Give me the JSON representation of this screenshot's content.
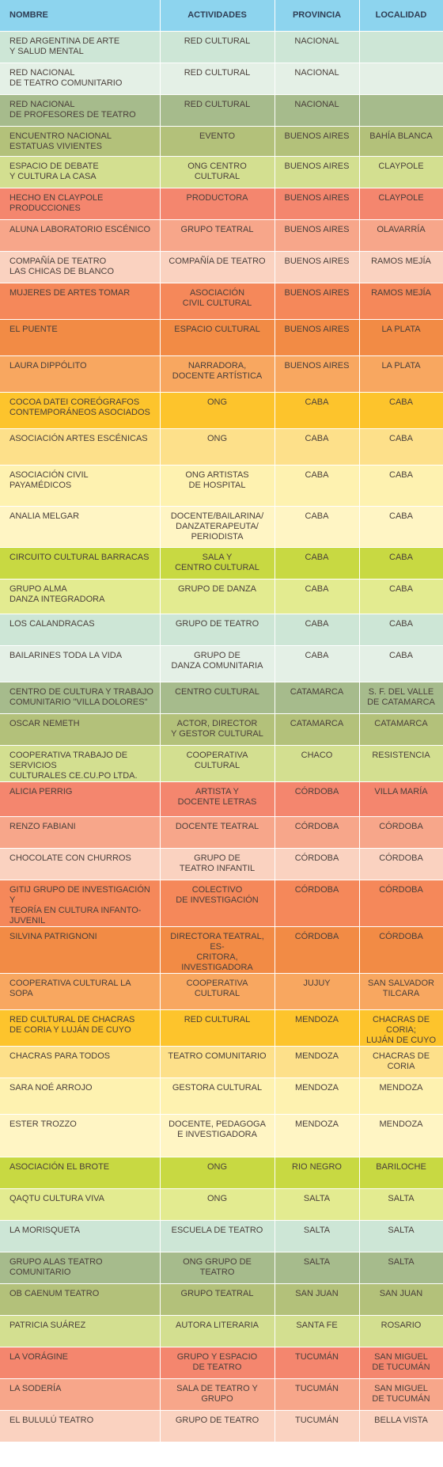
{
  "table": {
    "header_color": "#8dd4ee",
    "columns": [
      "NOMBRE",
      "ACTIVIDADES",
      "PROVINCIA",
      "LOCALIDAD"
    ],
    "rows": [
      {
        "nombre": "RED ARGENTINA DE ARTE\nY SALUD MENTAL",
        "actividades": "RED CULTURAL",
        "provincia": "NACIONAL",
        "localidad": "",
        "color": "#cde6d6"
      },
      {
        "nombre": "RED NACIONAL\nDE TEATRO COMUNITARIO",
        "actividades": "RED CULTURAL",
        "provincia": "NACIONAL",
        "localidad": "",
        "color": "#e4f0e6"
      },
      {
        "nombre": "RED NACIONAL\nDE PROFESORES DE TEATRO",
        "actividades": "RED CULTURAL",
        "provincia": "NACIONAL",
        "localidad": "",
        "color": "#a6bb8c"
      },
      {
        "nombre": "ENCUENTRO NACIONAL\nESTATUAS VIVIENTES",
        "actividades": "EVENTO",
        "provincia": "BUENOS AIRES",
        "localidad": "BAHÍA BLANCA",
        "color": "#b3c17a"
      },
      {
        "nombre": "ESPACIO DE DEBATE\nY CULTURA LA CASA",
        "actividades": "ONG CENTRO CULTURAL",
        "provincia": "BUENOS AIRES",
        "localidad": "CLAYPOLE",
        "color": "#d3df90"
      },
      {
        "nombre": "HECHO EN CLAYPOLE\nPRODUCCIONES",
        "actividades": "PRODUCTORA",
        "provincia": "BUENOS AIRES",
        "localidad": "CLAYPOLE",
        "color": "#f4866e"
      },
      {
        "nombre": "ALUNA LABORATORIO ESCÉNICO",
        "actividades": "GRUPO TEATRAL",
        "provincia": "BUENOS AIRES",
        "localidad": "OLAVARRÍA",
        "color": "#f7a68a"
      },
      {
        "nombre": "COMPAÑÍA DE TEATRO\nLAS CHICAS DE BLANCO",
        "actividades": "COMPAÑÍA DE TEATRO",
        "provincia": "BUENOS AIRES",
        "localidad": "RAMOS MEJÍA",
        "color": "#fad2c0"
      },
      {
        "nombre": "MUJERES DE ARTES TOMAR",
        "actividades": "ASOCIACIÓN\nCIVIL CULTURAL",
        "provincia": "BUENOS AIRES",
        "localidad": "RAMOS MEJÍA",
        "color": "#f5885a"
      },
      {
        "nombre": "EL PUENTE",
        "actividades": "ESPACIO CULTURAL",
        "provincia": "BUENOS AIRES",
        "localidad": "LA PLATA",
        "color": "#f28b45"
      },
      {
        "nombre": "LAURA DIPPÓLITO",
        "actividades": "NARRADORA,\nDOCENTE ARTÍSTICA",
        "provincia": "BUENOS AIRES",
        "localidad": "LA PLATA",
        "color": "#f8a760"
      },
      {
        "nombre": "COCOA DATEI COREÓGRAFOS\nCONTEMPORÁNEOS ASOCIADOS",
        "actividades": "ONG",
        "provincia": "CABA",
        "localidad": "CABA",
        "color": "#fdc42c"
      },
      {
        "nombre": "ASOCIACIÓN ARTES ESCÉNICAS",
        "actividades": "ONG",
        "provincia": "CABA",
        "localidad": "CABA",
        "color": "#fde08a"
      },
      {
        "nombre": "ASOCIACIÓN CIVIL\nPAYAMÉDICOS",
        "actividades": "ONG ARTISTAS\nDE HOSPITAL",
        "provincia": "CABA",
        "localidad": "CABA",
        "color": "#fef2b0"
      },
      {
        "nombre": "ANALIA MELGAR",
        "actividades": "DOCENTE/BAILARINA/\nDANZATERAPEUTA/\nPERIODISTA",
        "provincia": "CABA",
        "localidad": "CABA",
        "color": "#fff5c4"
      },
      {
        "nombre": "CIRCUITO CULTURAL BARRACAS",
        "actividades": "SALA Y\nCENTRO CULTURAL",
        "provincia": "CABA",
        "localidad": "CABA",
        "color": "#c8d942"
      },
      {
        "nombre": "GRUPO ALMA\nDANZA INTEGRADORA",
        "actividades": "GRUPO DE DANZA",
        "provincia": "CABA",
        "localidad": "CABA",
        "color": "#e3eb90"
      },
      {
        "nombre": "LOS CALANDRACAS",
        "actividades": "GRUPO DE TEATRO",
        "provincia": "CABA",
        "localidad": "CABA",
        "color": "#cde6d6"
      },
      {
        "nombre": "BAILARINES TODA LA VIDA",
        "actividades": "GRUPO DE\nDANZA COMUNITARIA",
        "provincia": "CABA",
        "localidad": "CABA",
        "color": "#e4f0e6"
      },
      {
        "nombre": "CENTRO DE CULTURA Y TRABAJO\nCOMUNITARIO \"VILLA DOLORES\"",
        "actividades": "CENTRO CULTURAL",
        "provincia": "CATAMARCA",
        "localidad": "S. F. DEL VALLE\nDE CATAMARCA",
        "color": "#a6bb8c"
      },
      {
        "nombre": "OSCAR NEMETH",
        "actividades": "ACTOR, DIRECTOR\nY GESTOR CULTURAL",
        "provincia": "CATAMARCA",
        "localidad": "CATAMARCA",
        "color": "#b3c17a"
      },
      {
        "nombre": "COOPERATIVA TRABAJO DE SERVICIOS\nCULTURALES CE.CU.PO LTDA.",
        "actividades": "COOPERATIVA\nCULTURAL",
        "provincia": "CHACO",
        "localidad": "RESISTENCIA",
        "color": "#d3df90"
      },
      {
        "nombre": "ALICIA PERRIG",
        "actividades": "ARTISTA Y\nDOCENTE LETRAS",
        "provincia": "CÓRDOBA",
        "localidad": "VILLA MARÍA",
        "color": "#f4866e"
      },
      {
        "nombre": "RENZO FABIANI",
        "actividades": "DOCENTE TEATRAL",
        "provincia": "CÓRDOBA",
        "localidad": "CÓRDOBA",
        "color": "#f7a68a"
      },
      {
        "nombre": "CHOCOLATE CON CHURROS",
        "actividades": "GRUPO DE\nTEATRO INFANTIL",
        "provincia": "CÓRDOBA",
        "localidad": "CÓRDOBA",
        "color": "#fad2c0"
      },
      {
        "nombre": "GITIJ GRUPO DE INVESTIGACIÓN Y\nTEORÍA EN CULTURA INFANTO-JUVENIL",
        "actividades": "COLECTIVO\nDE INVESTIGACIÓN",
        "provincia": "CÓRDOBA",
        "localidad": "CÓRDOBA",
        "color": "#f5885a"
      },
      {
        "nombre": "SILVINA PATRIGNONI",
        "actividades": "DIRECTORA TEATRAL, ES-\nCRITORA, INVESTIGADORA",
        "provincia": "CÓRDOBA",
        "localidad": "CÓRDOBA",
        "color": "#f28b45"
      },
      {
        "nombre": "COOPERATIVA CULTURAL LA SOPA",
        "actividades": "COOPERATIVA CULTURAL",
        "provincia": "JUJUY",
        "localidad": "SAN SALVADOR\nTILCARA",
        "color": "#f8a760"
      },
      {
        "nombre": "RED CULTURAL DE CHACRAS\nDE CORIA Y LUJÁN DE CUYO",
        "actividades": "RED CULTURAL",
        "provincia": "MENDOZA",
        "localidad": "CHACRAS DE CORIA;\nLUJÁN DE CUYO",
        "color": "#fdc42c"
      },
      {
        "nombre": "CHACRAS PARA TODOS",
        "actividades": "TEATRO COMUNITARIO",
        "provincia": "MENDOZA",
        "localidad": "CHACRAS DE CORIA",
        "color": "#fde08a"
      },
      {
        "nombre": "SARA NOÉ ARROJO",
        "actividades": "GESTORA CULTURAL",
        "provincia": "MENDOZA",
        "localidad": "MENDOZA",
        "color": "#fef2b0"
      },
      {
        "nombre": "ESTER TROZZO",
        "actividades": "DOCENTE, PEDAGOGA\nE INVESTIGADORA",
        "provincia": "MENDOZA",
        "localidad": "MENDOZA",
        "color": "#fff5c4"
      },
      {
        "nombre": "ASOCIACIÓN EL BROTE",
        "actividades": "ONG",
        "provincia": "RIO NEGRO",
        "localidad": "BARILOCHE",
        "color": "#c8d942"
      },
      {
        "nombre": "QAQTU CULTURA VIVA",
        "actividades": "ONG",
        "provincia": "SALTA",
        "localidad": "SALTA",
        "color": "#e3eb90"
      },
      {
        "nombre": "LA MORISQUETA",
        "actividades": "ESCUELA DE TEATRO",
        "provincia": "SALTA",
        "localidad": "SALTA",
        "color": "#cde6d6"
      },
      {
        "nombre": "GRUPO ALAS TEATRO  COMUNITARIO",
        "actividades": "ONG GRUPO DE TEATRO",
        "provincia": "SALTA",
        "localidad": "SALTA",
        "color": "#a6bb8c"
      },
      {
        "nombre": "OB CAENUM TEATRO",
        "actividades": "GRUPO TEATRAL",
        "provincia": "SAN JUAN",
        "localidad": "SAN JUAN",
        "color": "#b3c17a"
      },
      {
        "nombre": "PATRICIA SUÁREZ",
        "actividades": "AUTORA LITERARIA",
        "provincia": "SANTA FE",
        "localidad": "ROSARIO",
        "color": "#d3df90"
      },
      {
        "nombre": "LA VORÁGINE",
        "actividades": "GRUPO Y ESPACIO\nDE TEATRO",
        "provincia": "TUCUMÁN",
        "localidad": "SAN MIGUEL\nDE TUCUMÁN",
        "color": "#f4866e"
      },
      {
        "nombre": "LA SODERÍA",
        "actividades": "SALA DE TEATRO Y GRUPO",
        "provincia": "TUCUMÁN",
        "localidad": "SAN MIGUEL\nDE TUCUMÁN",
        "color": "#f7a68a"
      },
      {
        "nombre": "EL BULULÚ TEATRO",
        "actividades": "GRUPO DE TEATRO",
        "provincia": "TUCUMÁN",
        "localidad": "BELLA VISTA",
        "color": "#fad2c0"
      }
    ]
  }
}
